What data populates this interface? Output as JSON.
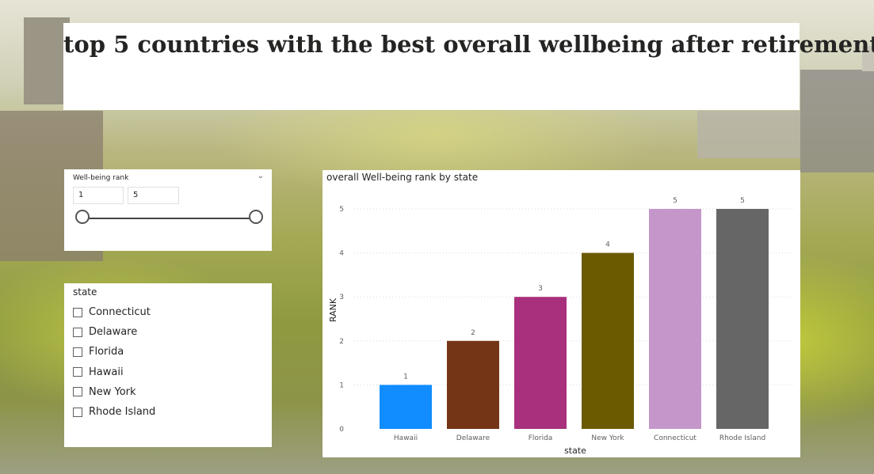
{
  "report": {
    "title": "top 5 countries with the best overall wellbeing after retirement"
  },
  "rank_slicer": {
    "header": "Well-being rank",
    "min_value": "1",
    "max_value": "5",
    "slider_low": 1,
    "slider_high": 5
  },
  "state_slicer": {
    "header": "state",
    "items": [
      {
        "label": "Connecticut",
        "checked": false
      },
      {
        "label": "Delaware",
        "checked": false
      },
      {
        "label": "Florida",
        "checked": false
      },
      {
        "label": "Hawaii",
        "checked": false
      },
      {
        "label": "New York",
        "checked": false
      },
      {
        "label": "Rhode Island",
        "checked": false
      }
    ]
  },
  "chart_title": "overall Well-being rank by state",
  "chart_data": {
    "type": "bar",
    "title": "overall Well-being rank by state",
    "xlabel": "state",
    "ylabel": "RANK",
    "categories": [
      "Hawaii",
      "Delaware",
      "Florida",
      "New York",
      "Connecticut",
      "Rhode Island"
    ],
    "values": [
      1,
      2,
      3,
      4,
      5,
      5
    ],
    "data_labels": [
      "1",
      "2",
      "3",
      "4",
      "5",
      "5"
    ],
    "colors": [
      "#118dff",
      "#743516",
      "#a8307c",
      "#6b5a00",
      "#c496c9",
      "#666666"
    ],
    "ylim": [
      0,
      5
    ],
    "yticks": [
      "0",
      "1",
      "2",
      "3",
      "4",
      "5"
    ],
    "grid": true
  }
}
